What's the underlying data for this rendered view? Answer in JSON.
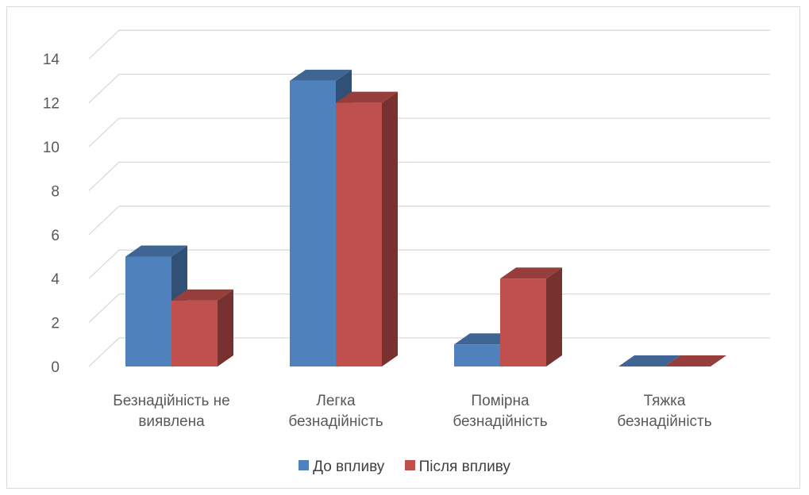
{
  "chart_data": {
    "type": "bar",
    "categories": [
      [
        "Безнадійність не",
        "виявлена"
      ],
      [
        "Легка",
        "безнадійність"
      ],
      [
        "Помірна",
        "безнадійність"
      ],
      [
        "Тяжка",
        "безнадійність"
      ]
    ],
    "series": [
      {
        "name": "До впливу",
        "values": [
          5,
          13,
          1,
          0
        ],
        "color": "#4f81bd"
      },
      {
        "name": "Після впливу",
        "values": [
          3,
          12,
          4,
          0
        ],
        "color": "#c0504d"
      }
    ],
    "yticks": [
      0,
      2,
      4,
      6,
      8,
      10,
      12,
      14
    ],
    "ylim": [
      0,
      14
    ],
    "grid": true,
    "legend_position": "bottom",
    "style": "3d-clustered"
  },
  "legend": {
    "items": [
      {
        "label": "До впливу",
        "color": "#4f81bd"
      },
      {
        "label": "Після впливу",
        "color": "#c0504d"
      }
    ]
  }
}
